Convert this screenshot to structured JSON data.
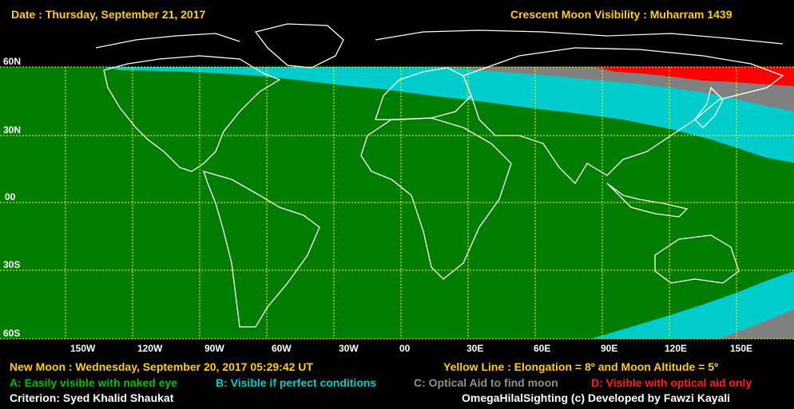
{
  "header": {
    "date": "Date : Thursday, September 21, 2017",
    "title": "Crescent Moon Visibility : Muharram  1439"
  },
  "lat_labels": [
    "60N",
    "30N",
    "00",
    "30S",
    "60S"
  ],
  "lon_labels": [
    "150W",
    "120W",
    "90W",
    "60W",
    "30W",
    "00",
    "30E",
    "60E",
    "90E",
    "120E",
    "150E"
  ],
  "footer": {
    "new_moon": "New Moon : Wednesday, September 20, 2017  05:29:42  UT",
    "yellow_line": "Yellow Line : Elongation = 8º  and Moon Altitude = 5º",
    "legend_a": "A: Easily visible with naked eye",
    "legend_b": "B: Visible if perfect conditions",
    "legend_c": "C: Optical Aid to find moon",
    "legend_d": "D: Visible with optical aid only",
    "criterion": "Criterion: Syed Khalid Shaukat",
    "credit": "OmegaHilalSighting  (c)  Developed by Fawzi Kayali"
  },
  "colors": {
    "zone_a": "#007d00",
    "zone_b": "#00cccc",
    "zone_c": "#808080",
    "zone_d": "#ff0000",
    "grid": "#ffff00",
    "coast": "#ffffff",
    "header_text": "#ffcc22",
    "background": "#000000"
  }
}
